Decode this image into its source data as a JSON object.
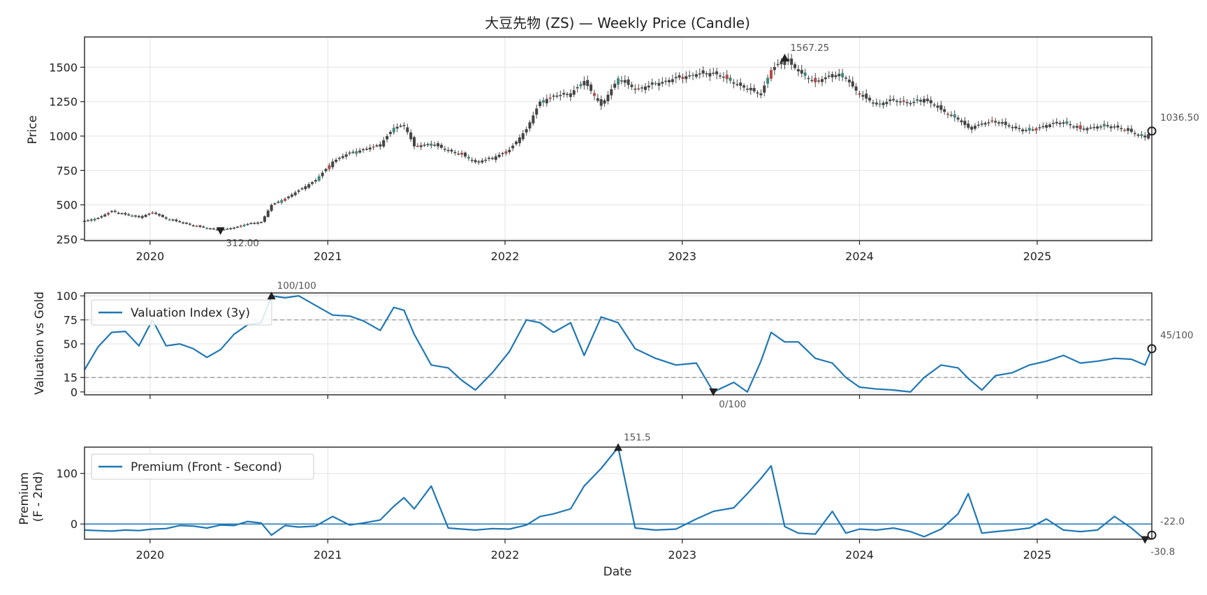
{
  "chart_data": [
    {
      "type": "candlestick",
      "title": "大豆先物 (ZS) — Weekly Price (Candle)",
      "ylabel": "Price",
      "ylim": [
        240,
        1720
      ],
      "xlim": [
        "2019-08-19",
        "2025-08-25"
      ],
      "x_ticks": [
        "2020",
        "2021",
        "2022",
        "2023",
        "2024",
        "2025"
      ],
      "y_ticks": [
        "250",
        "500",
        "750",
        "1000",
        "1250",
        "1500"
      ],
      "grid": true,
      "series": [
        {
          "values": [
            [
              "2019-08-19",
              382
            ],
            [
              "2019-09-16",
              405
            ],
            [
              "2019-10-14",
              455
            ],
            [
              "2019-11-11",
              430
            ],
            [
              "2019-12-09",
              410
            ],
            [
              "2020-01-06",
              445
            ],
            [
              "2020-02-03",
              400
            ],
            [
              "2020-03-02",
              375
            ],
            [
              "2020-03-30",
              350
            ],
            [
              "2020-04-27",
              330
            ],
            [
              "2020-05-25",
              318
            ],
            [
              "2020-06-22",
              335
            ],
            [
              "2020-07-20",
              362
            ],
            [
              "2020-08-17",
              375
            ],
            [
              "2020-09-07",
              500
            ],
            [
              "2020-10-05",
              545
            ],
            [
              "2020-11-02",
              605
            ],
            [
              "2020-12-07",
              680
            ],
            [
              "2021-01-11",
              815
            ],
            [
              "2021-02-15",
              880
            ],
            [
              "2021-03-15",
              900
            ],
            [
              "2021-04-19",
              940
            ],
            [
              "2021-05-17",
              1060
            ],
            [
              "2021-06-07",
              1080
            ],
            [
              "2021-06-28",
              925
            ],
            [
              "2021-08-02",
              945
            ],
            [
              "2021-09-06",
              895
            ],
            [
              "2021-10-04",
              865
            ],
            [
              "2021-11-01",
              810
            ],
            [
              "2021-12-06",
              840
            ],
            [
              "2022-01-10",
              900
            ],
            [
              "2022-02-14",
              1050
            ],
            [
              "2022-03-14",
              1250
            ],
            [
              "2022-04-11",
              1290
            ],
            [
              "2022-05-16",
              1310
            ],
            [
              "2022-06-13",
              1400
            ],
            [
              "2022-07-18",
              1220
            ],
            [
              "2022-08-22",
              1420
            ],
            [
              "2022-09-26",
              1340
            ],
            [
              "2022-11-07",
              1380
            ],
            [
              "2022-12-19",
              1420
            ],
            [
              "2023-01-30",
              1450
            ],
            [
              "2023-03-06",
              1460
            ],
            [
              "2023-04-17",
              1390
            ],
            [
              "2023-05-15",
              1340
            ],
            [
              "2023-06-12",
              1310
            ],
            [
              "2023-07-03",
              1480
            ],
            [
              "2023-07-31",
              1567
            ],
            [
              "2023-08-28",
              1470
            ],
            [
              "2023-10-02",
              1390
            ],
            [
              "2023-11-06",
              1450
            ],
            [
              "2023-12-04",
              1420
            ],
            [
              "2024-01-01",
              1300
            ],
            [
              "2024-02-05",
              1230
            ],
            [
              "2024-03-11",
              1260
            ],
            [
              "2024-04-15",
              1240
            ],
            [
              "2024-05-13",
              1270
            ],
            [
              "2024-06-17",
              1190
            ],
            [
              "2024-07-22",
              1120
            ],
            [
              "2024-08-12",
              1060
            ],
            [
              "2024-09-09",
              1090
            ],
            [
              "2024-10-07",
              1110
            ],
            [
              "2024-11-11",
              1060
            ],
            [
              "2024-12-16",
              1040
            ],
            [
              "2025-01-20",
              1080
            ],
            [
              "2025-02-24",
              1100
            ],
            [
              "2025-03-31",
              1050
            ],
            [
              "2025-05-05",
              1070
            ],
            [
              "2025-06-09",
              1070
            ],
            [
              "2025-07-14",
              1030
            ],
            [
              "2025-08-11",
              990
            ],
            [
              "2025-08-25",
              1036.5
            ]
          ]
        }
      ],
      "annotations": [
        {
          "x": "2023-07-31",
          "value": 1567.25,
          "label": "1567.25",
          "marker": "max"
        },
        {
          "x": "2020-05-25",
          "value": 312.0,
          "label": "312.00",
          "marker": "min"
        },
        {
          "x": "2025-08-25",
          "value": 1036.5,
          "label": "1036.50",
          "marker": "last"
        }
      ]
    },
    {
      "type": "line",
      "ylabel": "Valuation vs Gold",
      "ylim": [
        -3,
        103
      ],
      "y_ticks": [
        "0",
        "15",
        "50",
        "75",
        "100"
      ],
      "reference_lines": [
        15,
        75
      ],
      "legend": "top-left",
      "grid": true,
      "series": [
        {
          "name": "Valuation Index (3y)",
          "values": [
            [
              "2019-08-19",
              23
            ],
            [
              "2019-09-16",
              47
            ],
            [
              "2019-10-14",
              62
            ],
            [
              "2019-11-11",
              63
            ],
            [
              "2019-12-09",
              48
            ],
            [
              "2020-01-06",
              75
            ],
            [
              "2020-02-03",
              48
            ],
            [
              "2020-03-02",
              50
            ],
            [
              "2020-03-30",
              45
            ],
            [
              "2020-04-27",
              36
            ],
            [
              "2020-05-25",
              44
            ],
            [
              "2020-06-22",
              60
            ],
            [
              "2020-07-20",
              70
            ],
            [
              "2020-08-17",
              72
            ],
            [
              "2020-09-07",
              100
            ],
            [
              "2020-10-05",
              98
            ],
            [
              "2020-11-02",
              100
            ],
            [
              "2020-12-07",
              90
            ],
            [
              "2021-01-11",
              80
            ],
            [
              "2021-02-15",
              79
            ],
            [
              "2021-03-15",
              74
            ],
            [
              "2021-04-19",
              64
            ],
            [
              "2021-05-17",
              88
            ],
            [
              "2021-06-07",
              85
            ],
            [
              "2021-06-28",
              60
            ],
            [
              "2021-08-02",
              28
            ],
            [
              "2021-09-06",
              25
            ],
            [
              "2021-10-04",
              12
            ],
            [
              "2021-11-01",
              2
            ],
            [
              "2021-12-06",
              20
            ],
            [
              "2022-01-10",
              42
            ],
            [
              "2022-02-14",
              75
            ],
            [
              "2022-03-14",
              72
            ],
            [
              "2022-04-11",
              62
            ],
            [
              "2022-05-16",
              72
            ],
            [
              "2022-06-13",
              38
            ],
            [
              "2022-07-18",
              78
            ],
            [
              "2022-08-22",
              72
            ],
            [
              "2022-09-26",
              45
            ],
            [
              "2022-11-07",
              35
            ],
            [
              "2022-12-19",
              28
            ],
            [
              "2023-01-30",
              30
            ],
            [
              "2023-03-06",
              0
            ],
            [
              "2023-04-17",
              10
            ],
            [
              "2023-05-15",
              0
            ],
            [
              "2023-06-12",
              32
            ],
            [
              "2023-07-03",
              62
            ],
            [
              "2023-07-31",
              52
            ],
            [
              "2023-08-28",
              52
            ],
            [
              "2023-10-02",
              35
            ],
            [
              "2023-11-06",
              30
            ],
            [
              "2023-12-04",
              15
            ],
            [
              "2024-01-01",
              5
            ],
            [
              "2024-02-05",
              3
            ],
            [
              "2024-03-11",
              2
            ],
            [
              "2024-04-15",
              0
            ],
            [
              "2024-05-13",
              15
            ],
            [
              "2024-06-17",
              28
            ],
            [
              "2024-07-22",
              25
            ],
            [
              "2024-08-12",
              14
            ],
            [
              "2024-09-09",
              2
            ],
            [
              "2024-10-07",
              17
            ],
            [
              "2024-11-11",
              20
            ],
            [
              "2024-12-16",
              28
            ],
            [
              "2025-01-20",
              32
            ],
            [
              "2025-02-24",
              38
            ],
            [
              "2025-03-31",
              30
            ],
            [
              "2025-05-05",
              32
            ],
            [
              "2025-06-09",
              35
            ],
            [
              "2025-07-14",
              34
            ],
            [
              "2025-08-11",
              28
            ],
            [
              "2025-08-25",
              45
            ]
          ]
        }
      ],
      "annotations": [
        {
          "x": "2020-09-07",
          "value": 100,
          "label": "100/100",
          "marker": "max"
        },
        {
          "x": "2023-03-06",
          "value": 0,
          "label": "0/100",
          "marker": "min"
        },
        {
          "x": "2025-08-25",
          "value": 45,
          "label": "45/100",
          "marker": "last"
        }
      ]
    },
    {
      "type": "line",
      "ylabel": "Premium\n(F - 2nd)",
      "xlabel": "Date",
      "ylim": [
        -30,
        152
      ],
      "y_ticks": [
        "0",
        "100"
      ],
      "reference_lines": [
        0
      ],
      "legend": "top-left",
      "grid": true,
      "series": [
        {
          "name": "Premium (Front - Second)",
          "values": [
            [
              "2019-08-19",
              -12
            ],
            [
              "2019-09-16",
              -13
            ],
            [
              "2019-10-14",
              -14
            ],
            [
              "2019-11-11",
              -12
            ],
            [
              "2019-12-09",
              -13
            ],
            [
              "2020-01-06",
              -10
            ],
            [
              "2020-02-03",
              -9
            ],
            [
              "2020-03-02",
              -3
            ],
            [
              "2020-03-30",
              -4
            ],
            [
              "2020-04-27",
              -8
            ],
            [
              "2020-05-25",
              -2
            ],
            [
              "2020-06-22",
              -3
            ],
            [
              "2020-07-20",
              5
            ],
            [
              "2020-08-17",
              2
            ],
            [
              "2020-09-07",
              -22
            ],
            [
              "2020-10-05",
              -3
            ],
            [
              "2020-11-02",
              -6
            ],
            [
              "2020-12-07",
              -4
            ],
            [
              "2021-01-11",
              15
            ],
            [
              "2021-02-15",
              -2
            ],
            [
              "2021-03-15",
              2
            ],
            [
              "2021-04-19",
              8
            ],
            [
              "2021-05-17",
              35
            ],
            [
              "2021-06-07",
              52
            ],
            [
              "2021-06-28",
              30
            ],
            [
              "2021-08-02",
              75
            ],
            [
              "2021-09-06",
              -8
            ],
            [
              "2021-10-04",
              -10
            ],
            [
              "2021-11-01",
              -12
            ],
            [
              "2021-12-06",
              -9
            ],
            [
              "2022-01-10",
              -10
            ],
            [
              "2022-02-14",
              -2
            ],
            [
              "2022-03-14",
              15
            ],
            [
              "2022-04-11",
              20
            ],
            [
              "2022-05-16",
              30
            ],
            [
              "2022-06-13",
              75
            ],
            [
              "2022-07-18",
              110
            ],
            [
              "2022-08-22",
              151.5
            ],
            [
              "2022-09-26",
              -8
            ],
            [
              "2022-11-07",
              -12
            ],
            [
              "2022-12-19",
              -10
            ],
            [
              "2023-01-30",
              10
            ],
            [
              "2023-03-06",
              25
            ],
            [
              "2023-04-17",
              32
            ],
            [
              "2023-05-15",
              60
            ],
            [
              "2023-06-12",
              90
            ],
            [
              "2023-07-03",
              115
            ],
            [
              "2023-07-31",
              -5
            ],
            [
              "2023-08-28",
              -18
            ],
            [
              "2023-10-02",
              -20
            ],
            [
              "2023-11-06",
              25
            ],
            [
              "2023-12-04",
              -18
            ],
            [
              "2024-01-01",
              -10
            ],
            [
              "2024-02-05",
              -12
            ],
            [
              "2024-03-11",
              -8
            ],
            [
              "2024-04-15",
              -15
            ],
            [
              "2024-05-13",
              -25
            ],
            [
              "2024-06-17",
              -10
            ],
            [
              "2024-07-22",
              20
            ],
            [
              "2024-08-12",
              60
            ],
            [
              "2024-09-09",
              -18
            ],
            [
              "2024-10-07",
              -15
            ],
            [
              "2024-11-11",
              -12
            ],
            [
              "2024-12-16",
              -8
            ],
            [
              "2025-01-20",
              10
            ],
            [
              "2025-02-24",
              -12
            ],
            [
              "2025-03-31",
              -15
            ],
            [
              "2025-05-05",
              -12
            ],
            [
              "2025-06-09",
              15
            ],
            [
              "2025-07-14",
              -8
            ],
            [
              "2025-08-11",
              -30.8
            ],
            [
              "2025-08-25",
              -22
            ]
          ]
        }
      ],
      "annotations": [
        {
          "x": "2022-08-22",
          "value": 151.5,
          "label": "151.5",
          "marker": "max"
        },
        {
          "x": "2025-08-11",
          "value": -30.8,
          "label": "-30.8",
          "marker": "min"
        },
        {
          "x": "2025-08-25",
          "value": -22.0,
          "label": "-22.0",
          "marker": "last"
        }
      ]
    }
  ],
  "colors": {
    "line": "#1f77b4",
    "candle_up": "#3a8a7a",
    "candle_down": "#b24a4a",
    "candle_body": "#444444",
    "grid": "#e3e3e3",
    "ref_dashed": "#9a9a9a"
  }
}
